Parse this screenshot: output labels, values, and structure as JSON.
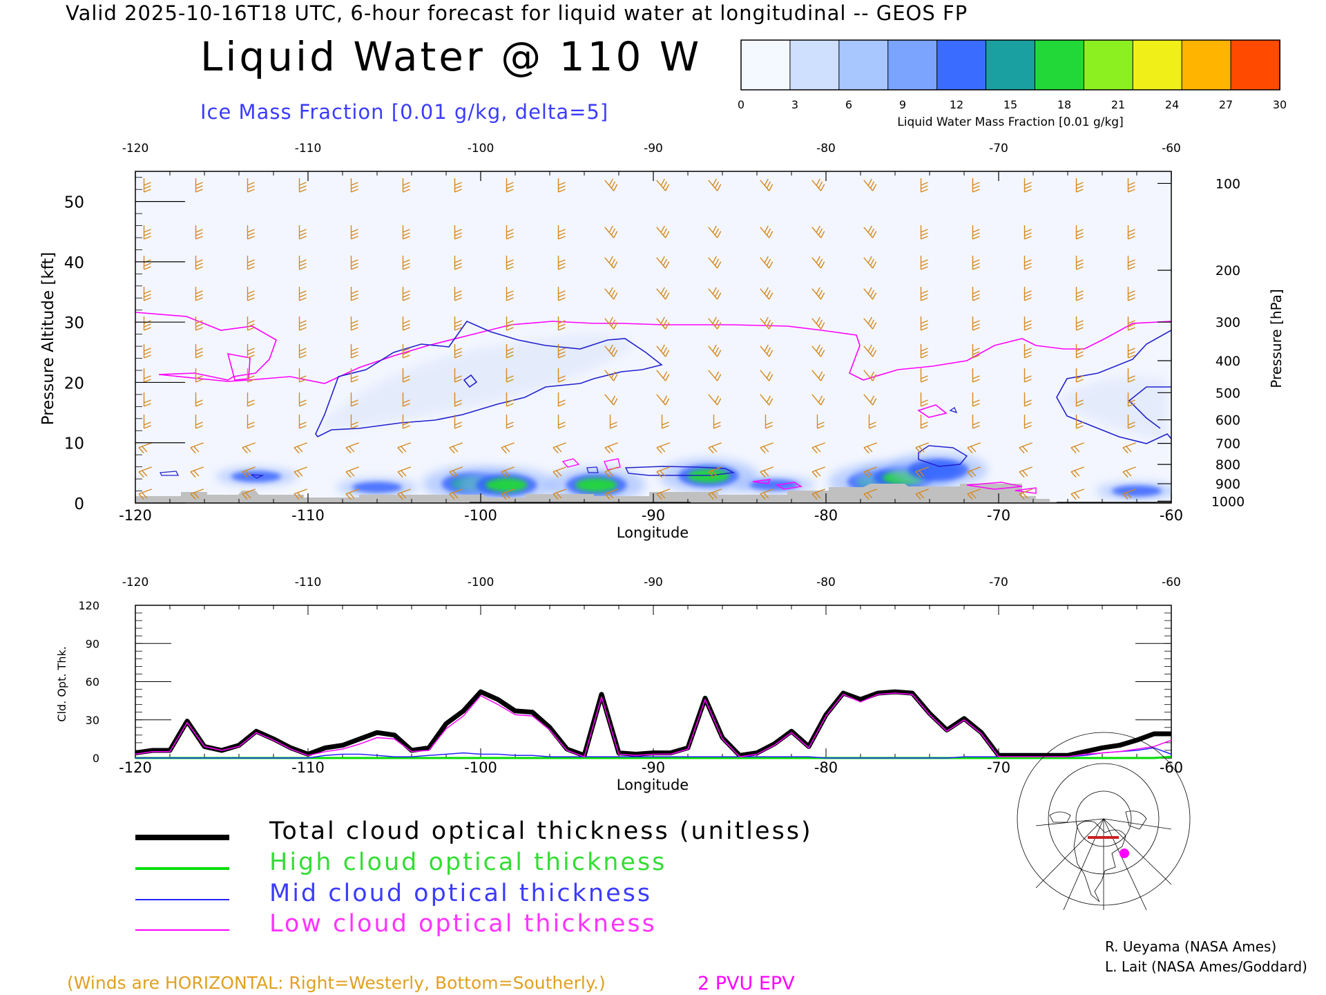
{
  "header": {
    "valid_line": "Valid 2025-10-16T18 UTC, 6-hour forecast for liquid water at longitudinal -- GEOS FP",
    "main_title": "Liquid Water @ 110 W",
    "subtitle": "Ice Mass Fraction [0.01 g/kg, delta=5]"
  },
  "colorbar": {
    "ticks": [
      "0",
      "3",
      "6",
      "9",
      "12",
      "15",
      "18",
      "21",
      "24",
      "27",
      "30"
    ],
    "label": "Liquid Water Mass Fraction [0.01 g/kg]",
    "colors": [
      "#f4f8ff",
      "#cfe0ff",
      "#a8c6ff",
      "#7aa4ff",
      "#3a6cff",
      "#1aa0a0",
      "#22d838",
      "#8cf020",
      "#f0f018",
      "#ffb400",
      "#ff4a00"
    ]
  },
  "colors": {
    "wind_barbs": "#d4881c",
    "pv_contour": "#ff00ff",
    "ice_contour": "#2222dd",
    "terrain": "#c0c0c0",
    "total_line": "#000000",
    "high_line": "#00dd00",
    "mid_line": "#2222ff",
    "low_line": "#ff00ff"
  },
  "chart_data": [
    {
      "type": "heatmap",
      "title": "Liquid Water @ 110 W",
      "xlabel": "Longitude",
      "ylabel": "Pressure Altitude [kft]",
      "ylabel_right": "Pressure [hPa]",
      "x_ticks": [
        "-120",
        "-110",
        "-100",
        "-90",
        "-80",
        "-70",
        "-60"
      ],
      "x_tick_values": [
        -120,
        -110,
        -100,
        -90,
        -80,
        -70,
        -60
      ],
      "y_ticks": [
        "0",
        "10",
        "20",
        "30",
        "40",
        "50"
      ],
      "y_tick_values": [
        0,
        10,
        20,
        30,
        40,
        50
      ],
      "right_ticks": [
        "100",
        "200",
        "300",
        "400",
        "500",
        "600",
        "700",
        "800",
        "900",
        "1000"
      ],
      "right_tick_values_kft": [
        53,
        38.6,
        30,
        23.6,
        18.3,
        13.8,
        9.9,
        6.4,
        3.2,
        0.3
      ],
      "xlim": [
        -120,
        -60
      ],
      "ylim": [
        0,
        55
      ],
      "liquid_water_blobs": [
        {
          "lon": -100.5,
          "kft": 3.2,
          "value": 15
        },
        {
          "lon": -98.5,
          "kft": 3.0,
          "value": 17
        },
        {
          "lon": -93.3,
          "kft": 3.0,
          "value": 18
        },
        {
          "lon": -86.8,
          "kft": 4.5,
          "value": 17
        },
        {
          "lon": -77,
          "kft": 3.5,
          "value": 16
        },
        {
          "lon": -75.5,
          "kft": 4.2,
          "value": 18
        },
        {
          "lon": -73.5,
          "kft": 5.5,
          "value": 13
        },
        {
          "lon": -106,
          "kft": 2.6,
          "value": 9
        },
        {
          "lon": -113,
          "kft": 4.4,
          "value": 6
        },
        {
          "lon": -83,
          "kft": 3.0,
          "value": 7
        },
        {
          "lon": -62,
          "kft": 2.0,
          "value": 6
        }
      ]
    },
    {
      "type": "line",
      "xlabel": "Longitude",
      "ylabel": "Cld. Opt. Thk.",
      "x_ticks": [
        "-120",
        "-110",
        "-100",
        "-90",
        "-80",
        "-70",
        "-60"
      ],
      "x_tick_values": [
        -120,
        -110,
        -100,
        -90,
        -80,
        -70,
        -60
      ],
      "y_ticks": [
        "0",
        "30",
        "60",
        "90",
        "120"
      ],
      "y_tick_values": [
        0,
        30,
        60,
        90,
        120
      ],
      "xlim": [
        -120,
        -60
      ],
      "ylim": [
        0,
        120
      ],
      "x": [
        -120,
        -119,
        -118,
        -117,
        -116,
        -115,
        -114,
        -113,
        -112,
        -111,
        -110,
        -109,
        -108,
        -107,
        -106,
        -105,
        -104,
        -103,
        -102,
        -101,
        -100,
        -99,
        -98,
        -97,
        -96,
        -95,
        -94,
        -93,
        -92,
        -91,
        -90,
        -89,
        -88,
        -87,
        -86,
        -85,
        -84,
        -83,
        -82,
        -81,
        -80,
        -79,
        -78,
        -77,
        -76,
        -75,
        -74,
        -73,
        -72,
        -71,
        -70,
        -69,
        -68,
        -67,
        -66,
        -65,
        -64,
        -63,
        -62,
        -61,
        -60
      ],
      "series": [
        {
          "name": "Total cloud optical thickness (unitless)",
          "values": [
            4,
            6,
            6,
            29,
            9,
            6,
            10,
            21,
            15,
            8,
            3,
            8,
            10,
            15,
            20,
            18,
            6,
            8,
            27,
            37,
            52,
            46,
            37,
            36,
            24,
            7,
            2,
            50,
            4,
            3,
            4,
            4,
            8,
            47,
            16,
            2,
            4,
            11,
            21,
            9,
            34,
            51,
            46,
            51,
            52,
            51,
            35,
            22,
            31,
            20,
            2,
            2,
            2,
            2,
            2,
            5,
            8,
            10,
            14,
            19,
            19
          ]
        },
        {
          "name": "High cloud optical thickness",
          "values": [
            0,
            0,
            0,
            0,
            0,
            0,
            0,
            0,
            0,
            0,
            0,
            0,
            0,
            0,
            0,
            0,
            0,
            0,
            0,
            0,
            0,
            0,
            0,
            0,
            0,
            0,
            0,
            0,
            0,
            0,
            0,
            0,
            0,
            0,
            0,
            0,
            0,
            0,
            0,
            0,
            0,
            0,
            0,
            0,
            0,
            0,
            0,
            0,
            0,
            0,
            0,
            0,
            0,
            0,
            0,
            0,
            0,
            0,
            0,
            0,
            1
          ]
        },
        {
          "name": "Mid cloud optical thickness",
          "values": [
            0,
            0,
            0,
            0,
            0,
            0,
            0,
            0,
            0,
            0,
            0,
            2,
            3,
            3,
            2,
            1,
            1,
            2,
            3,
            4,
            3,
            3,
            2,
            2,
            1,
            1,
            1,
            1,
            1,
            1,
            1,
            1,
            1,
            1,
            1,
            1,
            1,
            1,
            1,
            1,
            0,
            0,
            0,
            0,
            0,
            0,
            0,
            0,
            1,
            1,
            1,
            1,
            1,
            1,
            1,
            2,
            4,
            5,
            6,
            8,
            3
          ]
        },
        {
          "name": "Low cloud optical thickness",
          "values": [
            3,
            5,
            5,
            28,
            9,
            6,
            9,
            20,
            14,
            7,
            2,
            5,
            7,
            11,
            16,
            15,
            5,
            6,
            23,
            33,
            49,
            42,
            34,
            33,
            22,
            6,
            1,
            48,
            3,
            2,
            3,
            3,
            7,
            46,
            15,
            1,
            3,
            10,
            20,
            8,
            33,
            50,
            44,
            50,
            51,
            50,
            34,
            21,
            30,
            19,
            1,
            1,
            1,
            1,
            1,
            3,
            4,
            5,
            7,
            9,
            14
          ]
        }
      ]
    }
  ],
  "legend": {
    "total": "Total cloud optical thickness (unitless)",
    "high": "High cloud optical thickness",
    "mid": "Mid cloud optical thickness",
    "low": "Low cloud optical thickness"
  },
  "credits": {
    "line1": "R. Ueyama (NASA Ames)",
    "line2": "L. Lait (NASA Ames/Goddard)"
  },
  "notes": {
    "winds": "(Winds are HORIZONTAL: Right=Westerly, Bottom=Southerly.)",
    "pvu": "2 PVU EPV"
  }
}
